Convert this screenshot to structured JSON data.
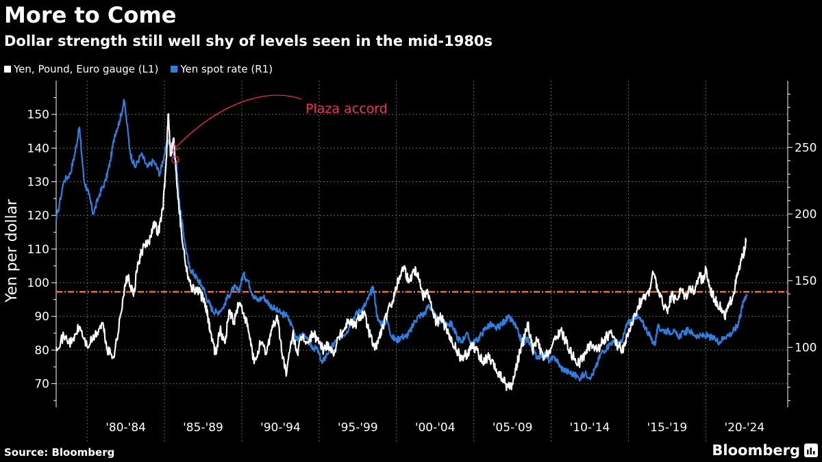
{
  "header": {
    "title": "More to Come",
    "subtitle": "Dollar strength still well shy of levels seen in the mid-1980s"
  },
  "footer": {
    "source": "Source: Bloomberg",
    "brand": "Bloomberg"
  },
  "colors": {
    "background": "#000000",
    "gauge_line": "#ffffff",
    "yen_line": "#2e7fe0",
    "reference_line": "#ff6a13",
    "annotation": "#ff2a55",
    "grid": "#6a6a6a",
    "text": "#ffffff"
  },
  "chart_data": {
    "type": "line",
    "title": "More to Come",
    "subtitle": "Dollar strength still well shy of levels seen in the mid-1980s",
    "ylabel": "Yen per dollar",
    "ylim_left": [
      63,
      160
    ],
    "ylim_right": [
      55,
      300
    ],
    "yticks_left": [
      70,
      80,
      90,
      100,
      110,
      120,
      130,
      140,
      150
    ],
    "yticks_right": [
      100,
      150,
      200,
      250
    ],
    "xlim": [
      1978.0,
      2025.3
    ],
    "xtick_labels": [
      "'80-'84",
      "'85-'89",
      "'90-'94",
      "'95-'99",
      "'00-'04",
      "'05-'09",
      "'10-'14",
      "'15-'19",
      "'20-'24"
    ],
    "xtick_centers": [
      1982.5,
      1987.5,
      1992.5,
      1997.5,
      2002.5,
      2007.5,
      2012.5,
      2017.5,
      2022.5
    ],
    "xgrid_years": [
      1980,
      1985,
      1990,
      1995,
      2000,
      2005,
      2010,
      2015,
      2020
    ],
    "grid": true,
    "legend_position": "top-left",
    "reference_line": {
      "axis": "left",
      "value": 97.3,
      "style": "dash-dot"
    },
    "annotations": [
      {
        "text": "Plaza accord",
        "x": 1985.7,
        "y_left": 136.5
      }
    ],
    "series": [
      {
        "name": "Yen, Pound, Euro gauge (L1)",
        "axis": "left",
        "points": [
          [
            1978.0,
            81
          ],
          [
            1978.5,
            84
          ],
          [
            1979.0,
            82
          ],
          [
            1979.5,
            87
          ],
          [
            1980.0,
            81
          ],
          [
            1980.5,
            84
          ],
          [
            1981.0,
            88
          ],
          [
            1981.3,
            80
          ],
          [
            1981.7,
            78
          ],
          [
            1982.0,
            85
          ],
          [
            1982.3,
            95
          ],
          [
            1982.6,
            102
          ],
          [
            1983.0,
            96
          ],
          [
            1983.3,
            106
          ],
          [
            1983.6,
            110
          ],
          [
            1984.0,
            112
          ],
          [
            1984.3,
            118
          ],
          [
            1984.6,
            115
          ],
          [
            1984.9,
            122
          ],
          [
            1985.1,
            135
          ],
          [
            1985.25,
            150
          ],
          [
            1985.4,
            138
          ],
          [
            1985.6,
            143
          ],
          [
            1985.75,
            133
          ],
          [
            1985.9,
            125
          ],
          [
            1986.1,
            115
          ],
          [
            1986.4,
            105
          ],
          [
            1986.7,
            99
          ],
          [
            1987.0,
            98
          ],
          [
            1987.3,
            97
          ],
          [
            1987.6,
            94
          ],
          [
            1987.8,
            90
          ],
          [
            1988.0,
            85
          ],
          [
            1988.3,
            79
          ],
          [
            1988.6,
            86
          ],
          [
            1988.9,
            82
          ],
          [
            1989.2,
            92
          ],
          [
            1989.5,
            88
          ],
          [
            1989.8,
            94
          ],
          [
            1990.2,
            90
          ],
          [
            1990.5,
            84
          ],
          [
            1990.8,
            76
          ],
          [
            1991.2,
            82
          ],
          [
            1991.6,
            79
          ],
          [
            1991.9,
            86
          ],
          [
            1992.3,
            90
          ],
          [
            1992.6,
            79
          ],
          [
            1992.9,
            73
          ],
          [
            1993.3,
            85
          ],
          [
            1993.6,
            79
          ],
          [
            1993.9,
            84
          ],
          [
            1994.3,
            82
          ],
          [
            1994.6,
            85
          ],
          [
            1994.9,
            83
          ],
          [
            1995.3,
            80
          ],
          [
            1995.6,
            82
          ],
          [
            1995.9,
            79
          ],
          [
            1996.3,
            84
          ],
          [
            1996.6,
            86
          ],
          [
            1996.9,
            89
          ],
          [
            1997.3,
            87
          ],
          [
            1997.6,
            90
          ],
          [
            1997.9,
            91
          ],
          [
            1998.2,
            86
          ],
          [
            1998.6,
            80
          ],
          [
            1998.9,
            84
          ],
          [
            1999.2,
            88
          ],
          [
            1999.6,
            93
          ],
          [
            1999.9,
            97
          ],
          [
            2000.2,
            102
          ],
          [
            2000.5,
            105
          ],
          [
            2000.8,
            100
          ],
          [
            2001.1,
            104
          ],
          [
            2001.4,
            103
          ],
          [
            2001.7,
            96
          ],
          [
            2002.0,
            98
          ],
          [
            2002.3,
            92
          ],
          [
            2002.6,
            88
          ],
          [
            2002.9,
            90
          ],
          [
            2003.3,
            85
          ],
          [
            2003.6,
            82
          ],
          [
            2003.9,
            80
          ],
          [
            2004.2,
            77
          ],
          [
            2004.6,
            79
          ],
          [
            2004.9,
            82
          ],
          [
            2005.3,
            79
          ],
          [
            2005.6,
            76
          ],
          [
            2005.9,
            78
          ],
          [
            2006.3,
            75
          ],
          [
            2006.6,
            73
          ],
          [
            2006.9,
            71
          ],
          [
            2007.2,
            69
          ],
          [
            2007.5,
            70
          ],
          [
            2007.8,
            76
          ],
          [
            2008.0,
            80
          ],
          [
            2008.3,
            84
          ],
          [
            2008.5,
            88
          ],
          [
            2008.8,
            80
          ],
          [
            2009.1,
            83
          ],
          [
            2009.5,
            77
          ],
          [
            2009.9,
            80
          ],
          [
            2010.3,
            83
          ],
          [
            2010.6,
            86
          ],
          [
            2011.0,
            82
          ],
          [
            2011.4,
            78
          ],
          [
            2011.8,
            76
          ],
          [
            2012.2,
            79
          ],
          [
            2012.6,
            82
          ],
          [
            2013.0,
            80
          ],
          [
            2013.4,
            83
          ],
          [
            2013.8,
            85
          ],
          [
            2014.2,
            82
          ],
          [
            2014.6,
            80
          ],
          [
            2014.9,
            84
          ],
          [
            2015.3,
            88
          ],
          [
            2015.6,
            93
          ],
          [
            2015.9,
            95
          ],
          [
            2016.3,
            97
          ],
          [
            2016.6,
            103
          ],
          [
            2016.9,
            98
          ],
          [
            2017.2,
            94
          ],
          [
            2017.5,
            92
          ],
          [
            2017.8,
            96
          ],
          [
            2018.1,
            95
          ],
          [
            2018.4,
            98
          ],
          [
            2018.7,
            96
          ],
          [
            2019.0,
            99
          ],
          [
            2019.3,
            97
          ],
          [
            2019.6,
            103
          ],
          [
            2019.8,
            100
          ],
          [
            2020.0,
            104
          ],
          [
            2020.3,
            98
          ],
          [
            2020.6,
            95
          ],
          [
            2020.9,
            93
          ],
          [
            2021.2,
            90
          ],
          [
            2021.5,
            93
          ],
          [
            2021.8,
            97
          ],
          [
            2022.1,
            103
          ],
          [
            2022.4,
            108
          ],
          [
            2022.6,
            112
          ]
        ]
      },
      {
        "name": "Yen spot rate (R1)",
        "axis": "right",
        "points": [
          [
            1978.0,
            195
          ],
          [
            1978.5,
            225
          ],
          [
            1978.9,
            230
          ],
          [
            1979.2,
            245
          ],
          [
            1979.5,
            265
          ],
          [
            1979.8,
            225
          ],
          [
            1980.1,
            215
          ],
          [
            1980.4,
            200
          ],
          [
            1980.8,
            215
          ],
          [
            1981.2,
            225
          ],
          [
            1981.5,
            240
          ],
          [
            1981.8,
            260
          ],
          [
            1982.1,
            270
          ],
          [
            1982.4,
            285
          ],
          [
            1982.8,
            245
          ],
          [
            1983.1,
            235
          ],
          [
            1983.5,
            245
          ],
          [
            1983.9,
            235
          ],
          [
            1984.3,
            240
          ],
          [
            1984.7,
            230
          ],
          [
            1985.0,
            245
          ],
          [
            1985.25,
            255
          ],
          [
            1985.5,
            250
          ],
          [
            1985.75,
            240
          ],
          [
            1986.0,
            205
          ],
          [
            1986.3,
            180
          ],
          [
            1986.6,
            160
          ],
          [
            1986.9,
            155
          ],
          [
            1987.2,
            150
          ],
          [
            1987.5,
            145
          ],
          [
            1987.8,
            135
          ],
          [
            1988.1,
            128
          ],
          [
            1988.4,
            126
          ],
          [
            1988.8,
            130
          ],
          [
            1989.1,
            138
          ],
          [
            1989.5,
            145
          ],
          [
            1989.8,
            142
          ],
          [
            1990.1,
            155
          ],
          [
            1990.4,
            150
          ],
          [
            1990.7,
            140
          ],
          [
            1991.0,
            135
          ],
          [
            1991.4,
            138
          ],
          [
            1991.8,
            132
          ],
          [
            1992.2,
            128
          ],
          [
            1992.6,
            125
          ],
          [
            1992.9,
            124
          ],
          [
            1993.3,
            115
          ],
          [
            1993.6,
            105
          ],
          [
            1993.9,
            110
          ],
          [
            1994.3,
            104
          ],
          [
            1994.6,
            100
          ],
          [
            1994.9,
            98
          ],
          [
            1995.2,
            88
          ],
          [
            1995.5,
            95
          ],
          [
            1995.8,
            100
          ],
          [
            1996.1,
            105
          ],
          [
            1996.4,
            108
          ],
          [
            1996.8,
            112
          ],
          [
            1997.1,
            120
          ],
          [
            1997.4,
            125
          ],
          [
            1997.7,
            128
          ],
          [
            1998.0,
            132
          ],
          [
            1998.3,
            140
          ],
          [
            1998.5,
            145
          ],
          [
            1998.8,
            120
          ],
          [
            1999.1,
            118
          ],
          [
            1999.4,
            120
          ],
          [
            1999.7,
            108
          ],
          [
            2000.0,
            105
          ],
          [
            2000.3,
            108
          ],
          [
            2000.6,
            108
          ],
          [
            2000.9,
            112
          ],
          [
            2001.2,
            120
          ],
          [
            2001.5,
            124
          ],
          [
            2001.8,
            125
          ],
          [
            2002.1,
            132
          ],
          [
            2002.4,
            125
          ],
          [
            2002.7,
            120
          ],
          [
            2002.9,
            120
          ],
          [
            2003.3,
            118
          ],
          [
            2003.6,
            117
          ],
          [
            2003.9,
            108
          ],
          [
            2004.2,
            104
          ],
          [
            2004.5,
            110
          ],
          [
            2004.9,
            103
          ],
          [
            2005.2,
            105
          ],
          [
            2005.5,
            110
          ],
          [
            2005.8,
            115
          ],
          [
            2006.1,
            117
          ],
          [
            2006.4,
            114
          ],
          [
            2006.7,
            116
          ],
          [
            2007.0,
            120
          ],
          [
            2007.3,
            122
          ],
          [
            2007.6,
            118
          ],
          [
            2007.9,
            110
          ],
          [
            2008.2,
            102
          ],
          [
            2008.5,
            107
          ],
          [
            2008.8,
            97
          ],
          [
            2009.1,
            93
          ],
          [
            2009.5,
            95
          ],
          [
            2009.9,
            90
          ],
          [
            2010.3,
            92
          ],
          [
            2010.6,
            85
          ],
          [
            2011.0,
            82
          ],
          [
            2011.4,
            80
          ],
          [
            2011.8,
            77
          ],
          [
            2012.2,
            80
          ],
          [
            2012.6,
            78
          ],
          [
            2012.9,
            85
          ],
          [
            2013.2,
            95
          ],
          [
            2013.6,
            100
          ],
          [
            2013.9,
            104
          ],
          [
            2014.3,
            102
          ],
          [
            2014.6,
            104
          ],
          [
            2014.9,
            118
          ],
          [
            2015.2,
            120
          ],
          [
            2015.5,
            124
          ],
          [
            2015.8,
            120
          ],
          [
            2016.1,
            115
          ],
          [
            2016.4,
            108
          ],
          [
            2016.7,
            102
          ],
          [
            2016.9,
            115
          ],
          [
            2017.2,
            113
          ],
          [
            2017.6,
            112
          ],
          [
            2017.9,
            112
          ],
          [
            2018.2,
            108
          ],
          [
            2018.6,
            111
          ],
          [
            2018.9,
            113
          ],
          [
            2019.2,
            110
          ],
          [
            2019.6,
            108
          ],
          [
            2019.9,
            109
          ],
          [
            2020.2,
            108
          ],
          [
            2020.6,
            106
          ],
          [
            2020.9,
            104
          ],
          [
            2021.2,
            108
          ],
          [
            2021.6,
            110
          ],
          [
            2021.9,
            114
          ],
          [
            2022.1,
            118
          ],
          [
            2022.3,
            128
          ],
          [
            2022.5,
            137
          ],
          [
            2022.65,
            140
          ]
        ]
      }
    ]
  }
}
